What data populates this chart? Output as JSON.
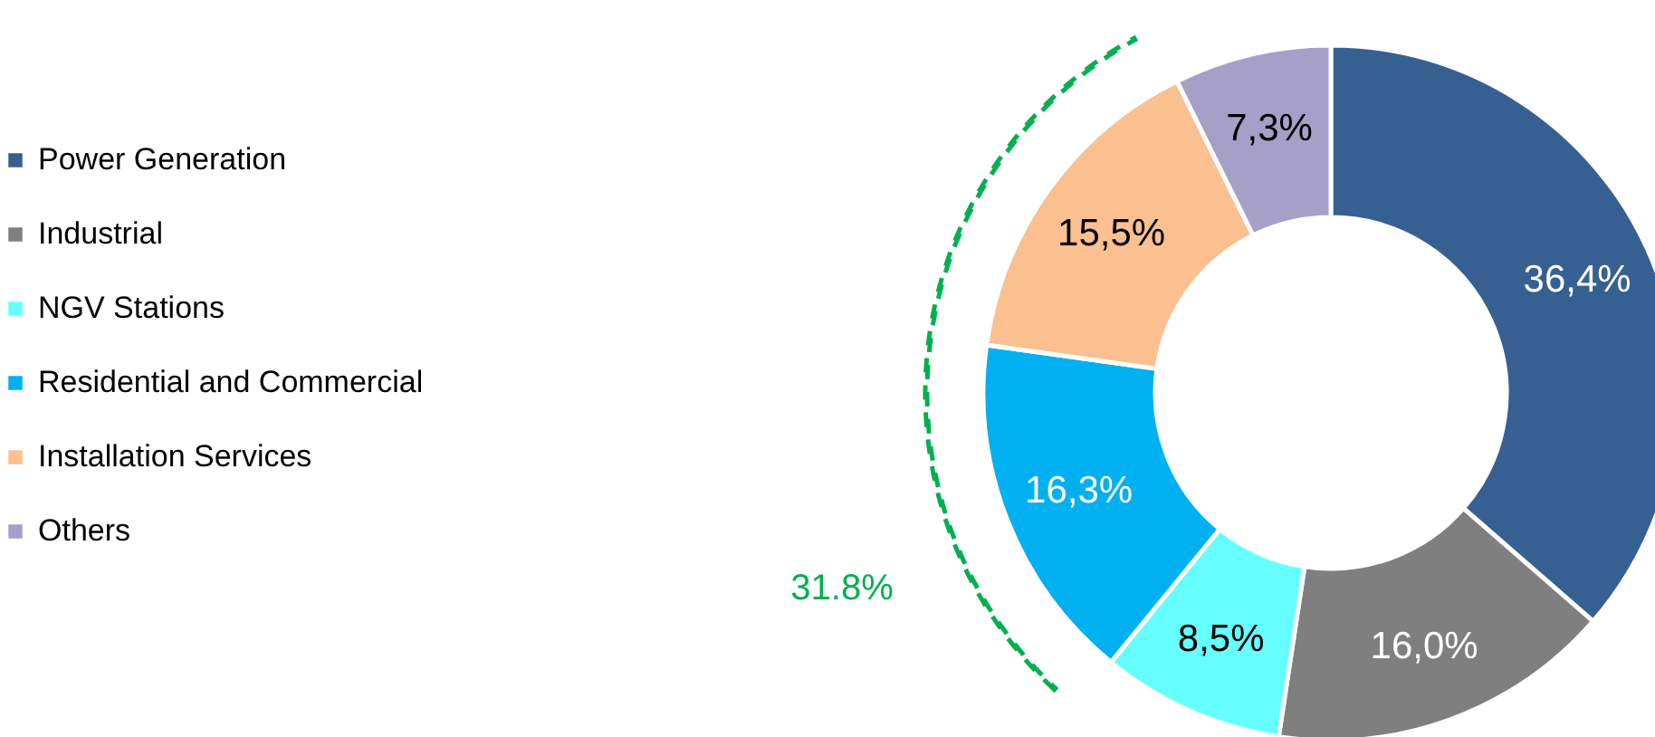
{
  "chart_data": {
    "type": "donut",
    "categories": [
      "Power Generation",
      "Industrial",
      "NGV Stations",
      "Residential and Commercial",
      "Installation Services",
      "Others"
    ],
    "values": [
      36.4,
      16.0,
      8.5,
      16.3,
      15.5,
      7.3
    ],
    "value_labels": [
      "36,4%",
      "16,0%",
      "8,5%",
      "16,3%",
      "15,5%",
      "7,3%"
    ],
    "colors": [
      "#376092",
      "#7f7f7f",
      "#66ffff",
      "#00b0f0",
      "#fac090",
      "#a6a0c8"
    ],
    "legend": "left",
    "annotations": [
      "31.8%"
    ]
  }
}
